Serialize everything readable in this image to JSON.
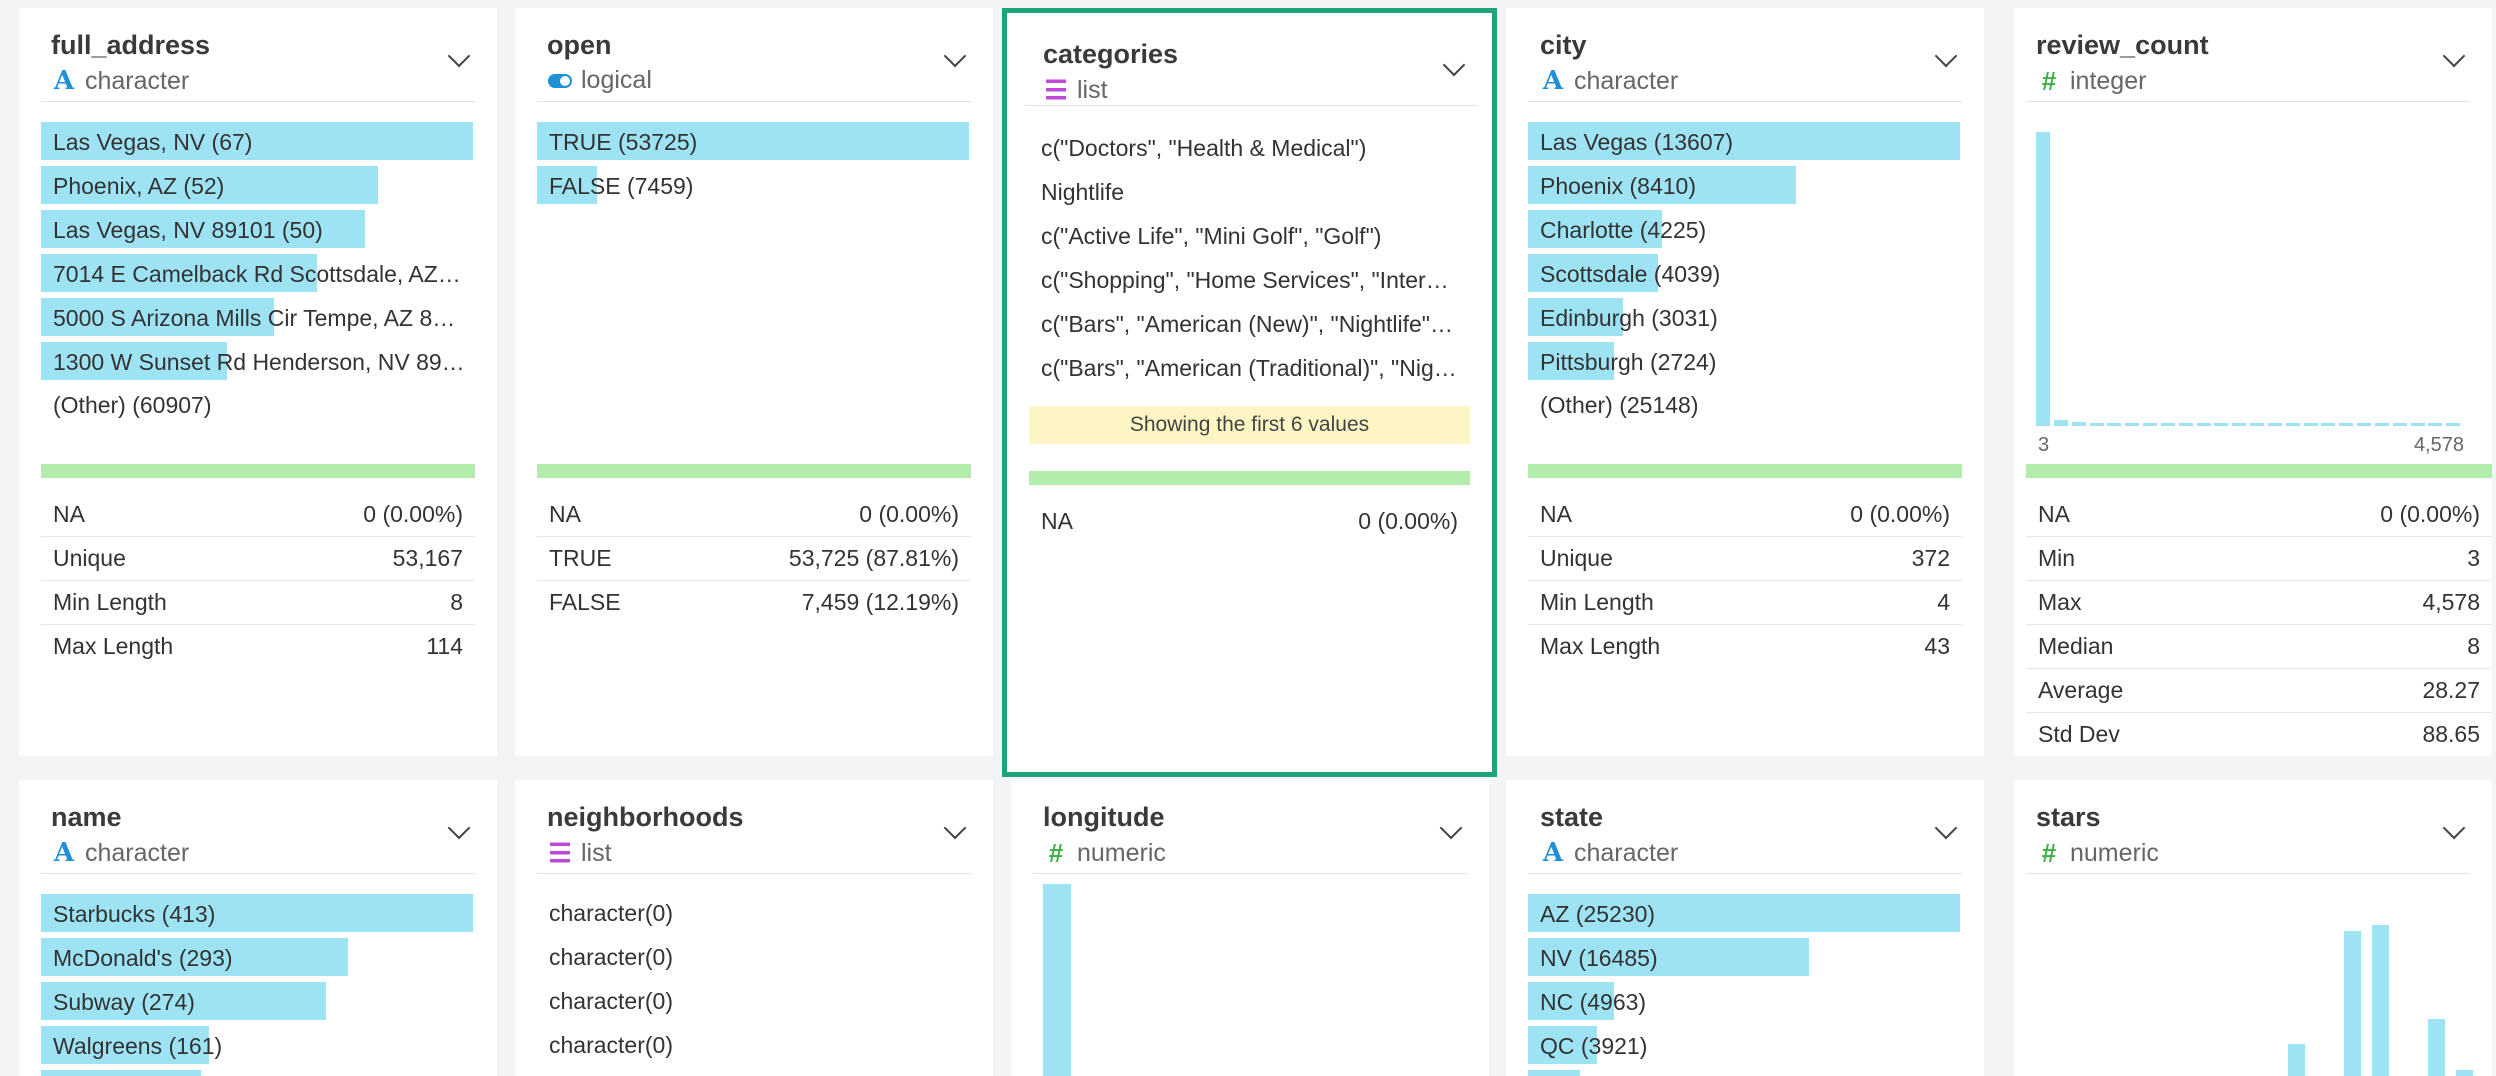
{
  "cards": {
    "full_address": {
      "name": "full_address",
      "type": "character",
      "bars": [
        {
          "label": "Las Vegas, NV (67)",
          "fraction": 1.0
        },
        {
          "label": "Phoenix, AZ (52)",
          "fraction": 0.78
        },
        {
          "label": "Las Vegas, NV 89101 (50)",
          "fraction": 0.75
        },
        {
          "label": "7014 E Camelback Rd Scottsdale, AZ…",
          "fraction": 0.64
        },
        {
          "label": "5000 S Arizona Mills Cir Tempe, AZ 8…",
          "fraction": 0.54
        },
        {
          "label": "1300 W Sunset Rd Henderson, NV 89…",
          "fraction": 0.43
        }
      ],
      "other": "(Other) (60907)",
      "stats": [
        {
          "label": "NA",
          "value": "0 (0.00%)"
        },
        {
          "label": "Unique",
          "value": "53,167"
        },
        {
          "label": "Min Length",
          "value": "8"
        },
        {
          "label": "Max Length",
          "value": "114"
        }
      ]
    },
    "open": {
      "name": "open",
      "type": "logical",
      "bars": [
        {
          "label": "TRUE (53725)",
          "fraction": 1.0
        },
        {
          "label": "FALSE (7459)",
          "fraction": 0.14
        }
      ],
      "stats": [
        {
          "label": "NA",
          "value": "0 (0.00%)"
        },
        {
          "label": "TRUE",
          "value": "53,725 (87.81%)"
        },
        {
          "label": "FALSE",
          "value": "7,459 (12.19%)"
        }
      ]
    },
    "categories": {
      "name": "categories",
      "type": "list",
      "values": [
        "c(\"Doctors\", \"Health & Medical\")",
        "Nightlife",
        "c(\"Active Life\", \"Mini Golf\", \"Golf\")",
        "c(\"Shopping\", \"Home Services\", \"Inter…",
        "c(\"Bars\", \"American (New)\", \"Nightlife\"…",
        "c(\"Bars\", \"American (Traditional)\", \"Nig…"
      ],
      "note": "Showing the first 6 values",
      "stats": [
        {
          "label": "NA",
          "value": "0 (0.00%)"
        }
      ]
    },
    "city": {
      "name": "city",
      "type": "character",
      "bars": [
        {
          "label": "Las Vegas (13607)",
          "fraction": 1.0
        },
        {
          "label": "Phoenix (8410)",
          "fraction": 0.62
        },
        {
          "label": "Charlotte (4225)",
          "fraction": 0.31
        },
        {
          "label": "Scottsdale (4039)",
          "fraction": 0.3
        },
        {
          "label": "Edinburgh (3031)",
          "fraction": 0.22
        },
        {
          "label": "Pittsburgh (2724)",
          "fraction": 0.2
        }
      ],
      "other": "(Other) (25148)",
      "stats": [
        {
          "label": "NA",
          "value": "0 (0.00%)"
        },
        {
          "label": "Unique",
          "value": "372"
        },
        {
          "label": "Min Length",
          "value": "4"
        },
        {
          "label": "Max Length",
          "value": "43"
        }
      ]
    },
    "review_count": {
      "name": "review_count",
      "type": "integer",
      "hist": [
        1.0,
        0.02,
        0.012,
        0.01,
        0.01,
        0.01,
        0.01,
        0.01,
        0.01,
        0.01,
        0.01,
        0.01,
        0.01,
        0.01,
        0.01,
        0.01,
        0.01,
        0.01,
        0.01,
        0.01,
        0.01,
        0.01,
        0.01,
        0.01
      ],
      "axis_min": "3",
      "axis_max": "4,578",
      "stats": [
        {
          "label": "NA",
          "value": "0 (0.00%)"
        },
        {
          "label": "Min",
          "value": "3"
        },
        {
          "label": "Max",
          "value": "4,578"
        },
        {
          "label": "Median",
          "value": "8"
        },
        {
          "label": "Average",
          "value": "28.27"
        },
        {
          "label": "Std Dev",
          "value": "88.65"
        }
      ]
    },
    "name": {
      "name": "name",
      "type": "character",
      "bars": [
        {
          "label": "Starbucks (413)",
          "fraction": 1.0
        },
        {
          "label": "McDonald's (293)",
          "fraction": 0.71
        },
        {
          "label": "Subway (274)",
          "fraction": 0.66
        },
        {
          "label": "Walgreens (161)",
          "fraction": 0.39
        },
        {
          "label": "",
          "fraction": 0.37
        }
      ]
    },
    "neighborhoods": {
      "name": "neighborhoods",
      "type": "list",
      "values": [
        "character(0)",
        "character(0)",
        "character(0)",
        "character(0)"
      ]
    },
    "longitude": {
      "name": "longitude",
      "type": "numeric",
      "hist": [
        1.0
      ]
    },
    "state": {
      "name": "state",
      "type": "character",
      "bars": [
        {
          "label": "AZ (25230)",
          "fraction": 1.0
        },
        {
          "label": "NV (16485)",
          "fraction": 0.65
        },
        {
          "label": "NC (4963)",
          "fraction": 0.2
        },
        {
          "label": "QC (3921)",
          "fraction": 0.16
        },
        {
          "label": "",
          "fraction": 0.12
        }
      ]
    },
    "stars": {
      "name": "stars",
      "type": "numeric",
      "hist": [
        0,
        0,
        0,
        0,
        0,
        0,
        0,
        0,
        0,
        0.36,
        0,
        0.9,
        0.93,
        0,
        0.48,
        0.24
      ]
    }
  }
}
